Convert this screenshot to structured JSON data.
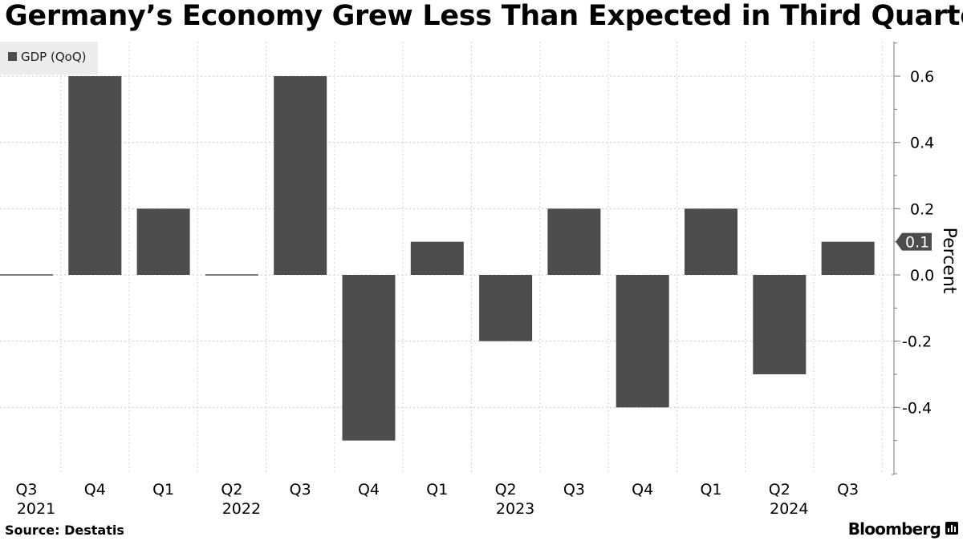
{
  "chart_data": {
    "type": "bar",
    "title": "Germany’s Economy Grew Less Than Expected in Third Quarter",
    "categories": [
      "Q3",
      "Q4",
      "Q1",
      "Q2",
      "Q3",
      "Q4",
      "Q1",
      "Q2",
      "Q3",
      "Q4",
      "Q1",
      "Q2",
      "Q3"
    ],
    "year_labels": [
      {
        "index": 0,
        "label": "2021"
      },
      {
        "index": 3,
        "label": "2022"
      },
      {
        "index": 7,
        "label": "2023"
      },
      {
        "index": 11,
        "label": "2024"
      }
    ],
    "series": [
      {
        "name": "GDP (QoQ)",
        "values": [
          0.0,
          0.6,
          0.2,
          0.0,
          0.6,
          -0.5,
          0.1,
          -0.2,
          0.2,
          -0.4,
          0.2,
          -0.3,
          0.1
        ],
        "color": "#4d4d4d"
      }
    ],
    "ylabel": "Percent",
    "xlabel": "",
    "ylim": [
      -0.6,
      0.7
    ],
    "yticks": [
      "0.6",
      "0.4",
      "0.2",
      "0.0",
      "-0.2",
      "-0.4"
    ],
    "ytick_values": [
      0.6,
      0.4,
      0.2,
      0.0,
      -0.2,
      -0.4
    ],
    "last_value_label": "0.1",
    "legend_position": "top-left",
    "grid": true
  },
  "source": "Source: Destatis",
  "brand": "Bloomberg"
}
